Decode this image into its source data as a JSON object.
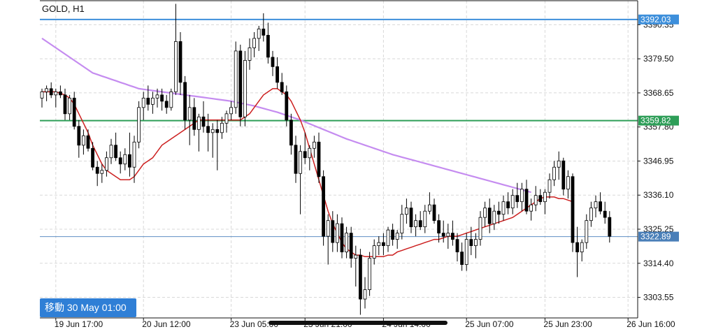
{
  "header": {
    "symbol_timeframe": "GOLD, H1"
  },
  "goto_button": {
    "label": "移動 30 May 01:00"
  },
  "colors": {
    "bull_fill": "#ffffff",
    "bear_fill": "#000000",
    "candle_outline": "#000000",
    "ma_fast": "#cc1f1f",
    "ma_slow": "#c58cf0",
    "level_blue": "#3d8fdb",
    "level_green": "#2e9e58",
    "current_price_line": "#5f8fc4",
    "grid": "#d8d8d8"
  },
  "chart_data": {
    "type": "candlestick",
    "symbol": "GOLD",
    "timeframe": "H1",
    "y_ticks": [
      3390.35,
      3379.5,
      3368.65,
      3357.8,
      3346.95,
      3336.1,
      3325.25,
      3314.4,
      3303.55
    ],
    "ylim": [
      3297,
      3398
    ],
    "x_ticks": [
      "19 Jun 17:00",
      "20 Jun 12:00",
      "23 Jun 05:00",
      "23 Jun 21:00",
      "24 Jun 14:00",
      "25 Jun 07:00",
      "25 Jun 23:00",
      "26 Jun 16:00"
    ],
    "x_tick_indices": [
      3,
      22,
      41,
      57,
      74,
      92,
      109,
      127
    ],
    "grid": true,
    "horizontal_levels": [
      {
        "value": 3392.03,
        "label": "3392.03",
        "color": "#3d8fdb"
      },
      {
        "value": 3359.82,
        "label": "3359.82",
        "color": "#2e9e58"
      }
    ],
    "current_price": {
      "value": 3322.89,
      "label": "3322.89"
    },
    "candles": [
      [
        3367,
        3370,
        3364,
        3369
      ],
      [
        3369,
        3371,
        3366,
        3370
      ],
      [
        3370,
        3372,
        3367,
        3368
      ],
      [
        3368,
        3370,
        3364,
        3369
      ],
      [
        3369,
        3371,
        3367,
        3368
      ],
      [
        3368,
        3370,
        3360,
        3362
      ],
      [
        3362,
        3368,
        3360,
        3367
      ],
      [
        3367,
        3369,
        3357,
        3358
      ],
      [
        3358,
        3360,
        3348,
        3352
      ],
      [
        3352,
        3357,
        3349,
        3355
      ],
      [
        3355,
        3357,
        3350,
        3351
      ],
      [
        3351,
        3353,
        3344,
        3345
      ],
      [
        3345,
        3347,
        3339,
        3343
      ],
      [
        3343,
        3346,
        3340,
        3344
      ],
      [
        3344,
        3350,
        3342,
        3348
      ],
      [
        3348,
        3354,
        3346,
        3352
      ],
      [
        3352,
        3356,
        3347,
        3348
      ],
      [
        3348,
        3350,
        3343,
        3346
      ],
      [
        3346,
        3351,
        3344,
        3349
      ],
      [
        3349,
        3356,
        3342,
        3345
      ],
      [
        3345,
        3355,
        3340,
        3353
      ],
      [
        3353,
        3366,
        3351,
        3364
      ],
      [
        3364,
        3369,
        3360,
        3367
      ],
      [
        3367,
        3371,
        3363,
        3365
      ],
      [
        3365,
        3369,
        3362,
        3367
      ],
      [
        3367,
        3370,
        3364,
        3368
      ],
      [
        3368,
        3370,
        3363,
        3366
      ],
      [
        3366,
        3368,
        3362,
        3364
      ],
      [
        3364,
        3370,
        3363,
        3369
      ],
      [
        3369,
        3397,
        3368,
        3385
      ],
      [
        3385,
        3388,
        3368,
        3372
      ],
      [
        3372,
        3374,
        3357,
        3360
      ],
      [
        3360,
        3368,
        3352,
        3364
      ],
      [
        3364,
        3367,
        3355,
        3357
      ],
      [
        3357,
        3362,
        3350,
        3361
      ],
      [
        3361,
        3366,
        3356,
        3358
      ],
      [
        3358,
        3362,
        3350,
        3356
      ],
      [
        3356,
        3359,
        3348,
        3357
      ],
      [
        3357,
        3360,
        3344,
        3356
      ],
      [
        3356,
        3361,
        3354,
        3359
      ],
      [
        3359,
        3363,
        3356,
        3362
      ],
      [
        3362,
        3366,
        3360,
        3364
      ],
      [
        3364,
        3385,
        3362,
        3382
      ],
      [
        3382,
        3384,
        3358,
        3361
      ],
      [
        3361,
        3382,
        3358,
        3379
      ],
      [
        3379,
        3386,
        3376,
        3383
      ],
      [
        3383,
        3388,
        3380,
        3386
      ],
      [
        3386,
        3390,
        3382,
        3389
      ],
      [
        3389,
        3394,
        3385,
        3387
      ],
      [
        3387,
        3391,
        3378,
        3380
      ],
      [
        3380,
        3382,
        3374,
        3377
      ],
      [
        3377,
        3380,
        3370,
        3372
      ],
      [
        3372,
        3375,
        3368,
        3369
      ],
      [
        3369,
        3371,
        3358,
        3360
      ],
      [
        3360,
        3362,
        3349,
        3352
      ],
      [
        3352,
        3355,
        3340,
        3343
      ],
      [
        3343,
        3352,
        3330,
        3350
      ],
      [
        3350,
        3356,
        3346,
        3348
      ],
      [
        3348,
        3352,
        3344,
        3351
      ],
      [
        3351,
        3355,
        3348,
        3353
      ],
      [
        3353,
        3356,
        3340,
        3342
      ],
      [
        3342,
        3344,
        3320,
        3323
      ],
      [
        3323,
        3330,
        3314,
        3328
      ],
      [
        3328,
        3331,
        3318,
        3321
      ],
      [
        3321,
        3330,
        3318,
        3327
      ],
      [
        3327,
        3329,
        3316,
        3318
      ],
      [
        3318,
        3326,
        3316,
        3324
      ],
      [
        3324,
        3326,
        3313,
        3316
      ],
      [
        3316,
        3320,
        3307,
        3317
      ],
      [
        3317,
        3319,
        3298,
        3303
      ],
      [
        3303,
        3310,
        3300,
        3306
      ],
      [
        3306,
        3318,
        3304,
        3316
      ],
      [
        3316,
        3322,
        3314,
        3320
      ],
      [
        3320,
        3323,
        3317,
        3321
      ],
      [
        3321,
        3324,
        3317,
        3320
      ],
      [
        3320,
        3326,
        3318,
        3325
      ],
      [
        3325,
        3327,
        3320,
        3322
      ],
      [
        3322,
        3325,
        3319,
        3324
      ],
      [
        3324,
        3333,
        3322,
        3330
      ],
      [
        3330,
        3335,
        3327,
        3332
      ],
      [
        3332,
        3334,
        3324,
        3326
      ],
      [
        3326,
        3330,
        3323,
        3328
      ],
      [
        3328,
        3331,
        3325,
        3326
      ],
      [
        3326,
        3333,
        3324,
        3331
      ],
      [
        3331,
        3337,
        3330,
        3333
      ],
      [
        3333,
        3335,
        3327,
        3328
      ],
      [
        3328,
        3330,
        3321,
        3324
      ],
      [
        3324,
        3328,
        3321,
        3323
      ],
      [
        3323,
        3327,
        3319,
        3324
      ],
      [
        3324,
        3328,
        3320,
        3322
      ],
      [
        3322,
        3324,
        3315,
        3318
      ],
      [
        3318,
        3321,
        3312,
        3314
      ],
      [
        3314,
        3324,
        3312,
        3322
      ],
      [
        3322,
        3326,
        3317,
        3320
      ],
      [
        3320,
        3324,
        3316,
        3322
      ],
      [
        3322,
        3331,
        3320,
        3329
      ],
      [
        3329,
        3334,
        3326,
        3332
      ],
      [
        3332,
        3335,
        3324,
        3327
      ],
      [
        3327,
        3333,
        3325,
        3331
      ],
      [
        3331,
        3334,
        3327,
        3330
      ],
      [
        3330,
        3336,
        3328,
        3334
      ],
      [
        3334,
        3337,
        3330,
        3332
      ],
      [
        3332,
        3338,
        3330,
        3336
      ],
      [
        3336,
        3340,
        3332,
        3334
      ],
      [
        3334,
        3340,
        3331,
        3338
      ],
      [
        3338,
        3341,
        3330,
        3331
      ],
      [
        3331,
        3335,
        3328,
        3333
      ],
      [
        3333,
        3339,
        3331,
        3336
      ],
      [
        3336,
        3338,
        3333,
        3334
      ],
      [
        3334,
        3338,
        3330,
        3337
      ],
      [
        3337,
        3343,
        3335,
        3341
      ],
      [
        3341,
        3347,
        3339,
        3345
      ],
      [
        3345,
        3350,
        3341,
        3347
      ],
      [
        3347,
        3348,
        3336,
        3338
      ],
      [
        3338,
        3344,
        3335,
        3342
      ],
      [
        3342,
        3343,
        3318,
        3321
      ],
      [
        3321,
        3326,
        3310,
        3318
      ],
      [
        3318,
        3322,
        3315,
        3321
      ],
      [
        3321,
        3330,
        3319,
        3328
      ],
      [
        3328,
        3334,
        3326,
        3332
      ],
      [
        3332,
        3336,
        3329,
        3334
      ],
      [
        3334,
        3337,
        3330,
        3331
      ],
      [
        3331,
        3334,
        3327,
        3329
      ],
      [
        3329,
        3331,
        3321,
        3323
      ]
    ],
    "ma_fast": [
      3369,
      3369,
      3369,
      3369,
      3368.5,
      3368,
      3367,
      3365,
      3362,
      3359,
      3356,
      3352,
      3349,
      3346,
      3344,
      3343,
      3342,
      3341,
      3341,
      3341,
      3342,
      3344,
      3346,
      3347,
      3348,
      3350,
      3352,
      3353,
      3354,
      3355,
      3356,
      3357,
      3358,
      3359,
      3360,
      3360,
      3360,
      3360,
      3360,
      3360,
      3360,
      3360,
      3360,
      3360,
      3361,
      3362,
      3364,
      3366,
      3368,
      3369,
      3370,
      3370,
      3369,
      3368,
      3366,
      3363,
      3360,
      3356,
      3351,
      3346,
      3341,
      3336,
      3331,
      3327,
      3324,
      3321,
      3319,
      3318,
      3317,
      3317,
      3316.5,
      3316.5,
      3316.5,
      3316.5,
      3316.5,
      3317,
      3317,
      3318,
      3318.5,
      3319,
      3319.5,
      3320,
      3320.5,
      3321,
      3321.5,
      3322,
      3322,
      3322.5,
      3323,
      3323,
      3323,
      3323.5,
      3324,
      3324.5,
      3325,
      3325.5,
      3326,
      3326.5,
      3327,
      3327.5,
      3328,
      3328.5,
      3329,
      3330,
      3331,
      3332,
      3333,
      3334,
      3335,
      3335.5,
      3335.5,
      3335.5,
      3335,
      3335,
      3334.5,
      3334
    ],
    "ma_slow": [
      3386,
      3385,
      3384,
      3383,
      3382,
      3381,
      3380,
      3379,
      3378,
      3377,
      3376,
      3375,
      3374.5,
      3374,
      3373.5,
      3373,
      3372.5,
      3372,
      3371.5,
      3371,
      3370.5,
      3370,
      3369.8,
      3369.6,
      3369.4,
      3369.2,
      3369,
      3368.8,
      3368.6,
      3368.4,
      3368.2,
      3368,
      3367.8,
      3367.6,
      3367.4,
      3367.2,
      3367,
      3366.8,
      3366.6,
      3366.4,
      3366.2,
      3366,
      3365.7,
      3365.4,
      3365.1,
      3364.8,
      3364.5,
      3364.1,
      3363.7,
      3363.3,
      3362.9,
      3362.5,
      3362,
      3361.5,
      3361,
      3360.5,
      3360,
      3359.4,
      3358.8,
      3358.2,
      3357.6,
      3357,
      3356.4,
      3355.8,
      3355.2,
      3354.6,
      3354,
      3353.5,
      3353,
      3352.5,
      3352,
      3351.5,
      3351,
      3350.5,
      3350,
      3349.5,
      3349,
      3348.6,
      3348.2,
      3347.8,
      3347.4,
      3347,
      3346.6,
      3346.2,
      3345.8,
      3345.4,
      3345,
      3344.6,
      3344.2,
      3343.8,
      3343.4,
      3343,
      3342.6,
      3342.2,
      3341.8,
      3341.4,
      3341,
      3340.6,
      3340.2,
      3339.8,
      3339.4,
      3339,
      3338.6,
      3338.2,
      3337.8,
      3337.4,
      3337
    ]
  }
}
